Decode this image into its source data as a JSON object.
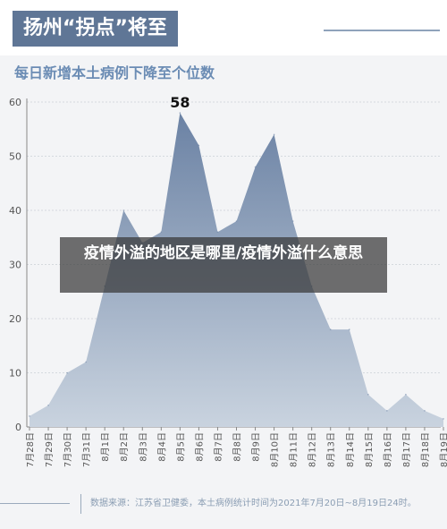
{
  "header": {
    "title": "扬州“拐点”将至"
  },
  "overlay": {
    "text": "疫情外溢的地区是哪里/疫情外溢什么意思"
  },
  "footer": {
    "source": "数据来源：江苏省卫健委，本土病例统计时间为2021年7月20日~8月19日24时。"
  },
  "colors": {
    "header_bg": "#5f7696",
    "area_top": "#6b82a4",
    "area_bottom": "#c9d3df",
    "grid": "#d5d9de"
  },
  "chart_data": {
    "type": "area",
    "title": "每日新增本土病例下降至个位数",
    "categories": [
      "7月28日",
      "7月29日",
      "7月30日",
      "7月31日",
      "8月1日",
      "8月2日",
      "8月3日",
      "8月4日",
      "8月5日",
      "8月6日",
      "8月7日",
      "8月8日",
      "8月9日",
      "8月10日",
      "8月11日",
      "8月12日",
      "8月13日",
      "8月14日",
      "8月15日",
      "8月16日",
      "8月17日",
      "8月18日",
      "8月19日"
    ],
    "values": [
      2,
      4,
      10,
      12,
      26,
      40,
      34,
      36,
      58,
      52,
      36,
      38,
      48,
      54,
      38,
      26,
      18,
      18,
      6,
      3,
      6,
      3,
      1.5
    ],
    "yticks": [
      0,
      10,
      20,
      30,
      40,
      50,
      60
    ],
    "ylim": [
      0,
      60
    ],
    "annotations": [
      {
        "category": "8月5日",
        "label": "58"
      }
    ],
    "grid": true
  }
}
